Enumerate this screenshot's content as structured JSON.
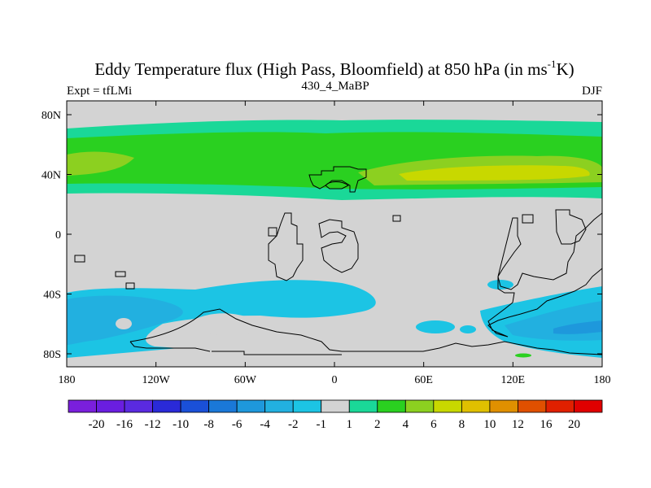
{
  "title": {
    "main": "Eddy Temperature flux (High Pass, Bloomfield) at 850 hPa (in ms",
    "sup": "-1",
    "tail": "K)"
  },
  "subtitle": {
    "left": "Expt = tfLMi",
    "center": "430_4_MaBP",
    "right": "DJF"
  },
  "axes": {
    "y_ticks": [
      "80N",
      "40N",
      "0",
      "40S",
      "80S"
    ],
    "x_ticks": [
      "180",
      "120W",
      "60W",
      "0",
      "60E",
      "120E",
      "180"
    ]
  },
  "colorbar": {
    "labels": [
      "-20",
      "-16",
      "-12",
      "-10",
      "-8",
      "-6",
      "-4",
      "-2",
      "-1",
      "1",
      "2",
      "4",
      "6",
      "8",
      "10",
      "12",
      "16",
      "20"
    ],
    "colors": [
      "#7a1fdc",
      "#6a1ee0",
      "#5a2ae0",
      "#2a2ad8",
      "#1a50d8",
      "#1a78d8",
      "#1e98dc",
      "#22b0e0",
      "#1cc4e4",
      "#d3d3d3",
      "#1ad898",
      "#2ad020",
      "#8cd020",
      "#c8d800",
      "#e0c000",
      "#e09000",
      "#e05000",
      "#e02000",
      "#e00000"
    ]
  },
  "colors": {
    "neutral": "#d3d3d3",
    "teal": "#1ad898",
    "green": "#2ad020",
    "lightgreen": "#8cd020",
    "yellowgreen": "#c8d800",
    "cyan": "#1cc4e4",
    "lightblue": "#22b0e0",
    "blue": "#1e98dc"
  }
}
